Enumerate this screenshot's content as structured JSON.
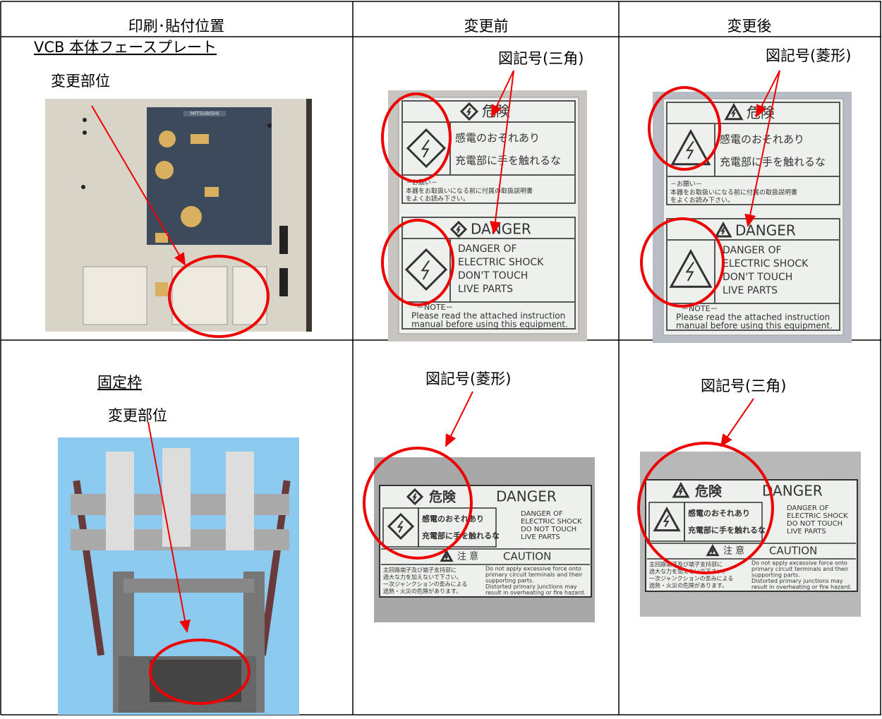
{
  "table": {
    "headers": [
      "印刷･貼付位置",
      "変更前",
      "変更後"
    ],
    "rows": [
      {
        "location": "VCB 本体フェースプレート",
        "note": "変更部位",
        "before_callout": "図記号(三角)",
        "after_callout": "図記号(菱形)"
      },
      {
        "location": "固定枠",
        "note": "変更部位",
        "before_callout": "図記号(菱形)",
        "after_callout": "図記号(三角)"
      }
    ]
  },
  "faceplate": {
    "brand": "MITSUBISHI"
  },
  "label1": {
    "title": "危険",
    "jp": [
      "感電のおそれあり",
      "充電部に手を触れるな"
    ],
    "request": "－お願い－",
    "request_text": [
      "本器をお取扱いになる前に付属の取扱説明書",
      "をよくお読み下さい。"
    ],
    "en_title": "DANGER",
    "en": [
      "DANGER OF",
      "ELECTRIC SHOCK",
      "DON'T TOUCH",
      "LIVE PARTS"
    ],
    "note": "－NOTE－",
    "note_text": [
      "Please read the attached instruction",
      "manual before using this equipment."
    ]
  },
  "label2": {
    "title": "危険",
    "en_title": "DANGER",
    "jp": [
      "感電のおそれあり",
      "充電部に手を触れるな"
    ],
    "en": [
      "DANGER OF",
      "ELECTRIC SHOCK",
      "DO NOT TOUCH",
      "LIVE PARTS"
    ],
    "caution_jp": "注 意",
    "caution_en": "CAUTION",
    "caution_jp_text": [
      "主回路端子及び端子支持部に",
      "過大な力を加えないで下さい。",
      "一次ジャンクションの歪みによる",
      "過熱・火災の危険があります。"
    ],
    "caution_en_text": [
      "Do not apply excessive force onto",
      "primary circuit terminals and their",
      "supporting parts.",
      "Distorted primary junctions may",
      "result in overheating or fire hazard."
    ]
  }
}
